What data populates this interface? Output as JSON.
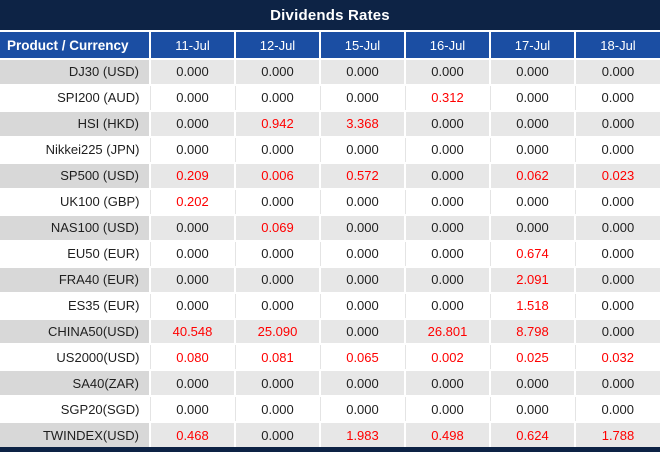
{
  "title_bar": {
    "label": "Dividends Rates"
  },
  "colors": {
    "title_bar_bg": "#0d2345",
    "header_bg": "#1b4ea3",
    "band_label_bg": "#d8d8d8",
    "band_cell_bg": "#e7e7e7",
    "value_text": "#1f1f1f",
    "highlight_red": "#ff0000"
  },
  "chart_data": {
    "type": "table",
    "title": "Dividends Rates",
    "columns": [
      "Product / Currency",
      "11-Jul",
      "12-Jul",
      "15-Jul",
      "16-Jul",
      "17-Jul",
      "18-Jul"
    ],
    "rows": [
      {
        "label": "DJ30 (USD)",
        "values": [
          "0.000",
          "0.000",
          "0.000",
          "0.000",
          "0.000",
          "0.000"
        ],
        "red": [
          0,
          0,
          0,
          0,
          0,
          0
        ]
      },
      {
        "label": "SPI200 (AUD)",
        "values": [
          "0.000",
          "0.000",
          "0.000",
          "0.312",
          "0.000",
          "0.000"
        ],
        "red": [
          0,
          0,
          0,
          1,
          0,
          0
        ]
      },
      {
        "label": "HSI (HKD)",
        "values": [
          "0.000",
          "0.942",
          "3.368",
          "0.000",
          "0.000",
          "0.000"
        ],
        "red": [
          0,
          1,
          1,
          0,
          0,
          0
        ]
      },
      {
        "label": "Nikkei225 (JPN)",
        "values": [
          "0.000",
          "0.000",
          "0.000",
          "0.000",
          "0.000",
          "0.000"
        ],
        "red": [
          0,
          0,
          0,
          0,
          0,
          0
        ]
      },
      {
        "label": "SP500 (USD)",
        "values": [
          "0.209",
          "0.006",
          "0.572",
          "0.000",
          "0.062",
          "0.023"
        ],
        "red": [
          1,
          1,
          1,
          0,
          1,
          1
        ]
      },
      {
        "label": "UK100 (GBP)",
        "values": [
          "0.202",
          "0.000",
          "0.000",
          "0.000",
          "0.000",
          "0.000"
        ],
        "red": [
          1,
          0,
          0,
          0,
          0,
          0
        ]
      },
      {
        "label": "NAS100 (USD)",
        "values": [
          "0.000",
          "0.069",
          "0.000",
          "0.000",
          "0.000",
          "0.000"
        ],
        "red": [
          0,
          1,
          0,
          0,
          0,
          0
        ]
      },
      {
        "label": "EU50 (EUR)",
        "values": [
          "0.000",
          "0.000",
          "0.000",
          "0.000",
          "0.674",
          "0.000"
        ],
        "red": [
          0,
          0,
          0,
          0,
          1,
          0
        ]
      },
      {
        "label": "FRA40 (EUR)",
        "values": [
          "0.000",
          "0.000",
          "0.000",
          "0.000",
          "2.091",
          "0.000"
        ],
        "red": [
          0,
          0,
          0,
          0,
          1,
          0
        ]
      },
      {
        "label": "ES35 (EUR)",
        "values": [
          "0.000",
          "0.000",
          "0.000",
          "0.000",
          "1.518",
          "0.000"
        ],
        "red": [
          0,
          0,
          0,
          0,
          1,
          0
        ]
      },
      {
        "label": "CHINA50(USD)",
        "values": [
          "40.548",
          "25.090",
          "0.000",
          "26.801",
          "8.798",
          "0.000"
        ],
        "red": [
          1,
          1,
          0,
          1,
          1,
          0
        ]
      },
      {
        "label": "US2000(USD)",
        "values": [
          "0.080",
          "0.081",
          "0.065",
          "0.002",
          "0.025",
          "0.032"
        ],
        "red": [
          1,
          1,
          1,
          1,
          1,
          1
        ]
      },
      {
        "label": "SA40(ZAR)",
        "values": [
          "0.000",
          "0.000",
          "0.000",
          "0.000",
          "0.000",
          "0.000"
        ],
        "red": [
          0,
          0,
          0,
          0,
          0,
          0
        ]
      },
      {
        "label": "SGP20(SGD)",
        "values": [
          "0.000",
          "0.000",
          "0.000",
          "0.000",
          "0.000",
          "0.000"
        ],
        "red": [
          0,
          0,
          0,
          0,
          0,
          0
        ]
      },
      {
        "label": "TWINDEX(USD)",
        "values": [
          "0.468",
          "0.000",
          "1.983",
          "0.498",
          "0.624",
          "1.788"
        ],
        "red": [
          1,
          0,
          1,
          1,
          1,
          1
        ]
      }
    ]
  }
}
